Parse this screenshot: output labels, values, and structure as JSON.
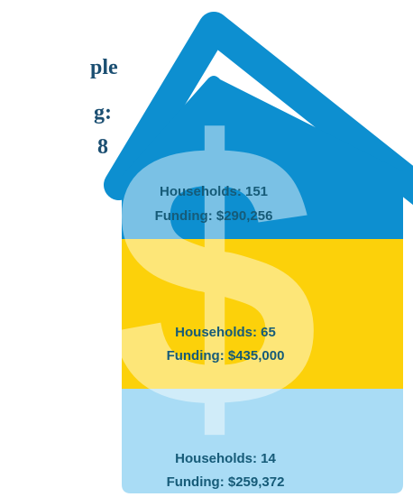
{
  "header": {
    "lines": [
      "ple",
      "g:",
      "8"
    ]
  },
  "symbol": "$",
  "sections": [
    {
      "households": "Households: 151",
      "funding": "Funding: $290,256"
    },
    {
      "households": "Households: 65",
      "funding": "Funding: $435,000"
    },
    {
      "households": "Households: 14",
      "funding": "Funding: $259,372"
    }
  ]
}
